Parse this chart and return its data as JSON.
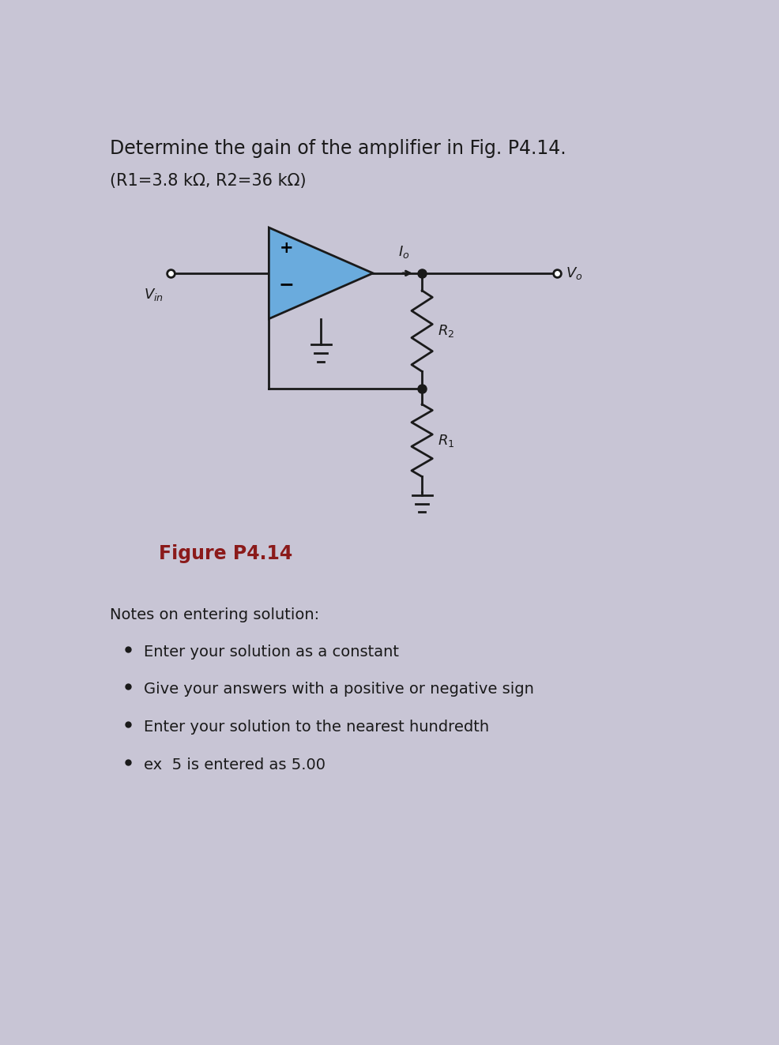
{
  "title_line1": "Determine the gain of the amplifier in Fig. P4.14.",
  "title_line2": "(R1=3.8 kΩ, R2=36 kΩ)",
  "figure_label": "Figure P4.14",
  "figure_label_color": "#8B1A1A",
  "notes_title": "Notes on entering solution:",
  "bullet_points": [
    "Enter your solution as a constant",
    "Give your answers with a positive or negative sign",
    "Enter your solution to the nearest hundredth",
    "ex  5 is entered as 5.00"
  ],
  "background_color": "#c8c5d5",
  "text_color": "#1a1a1a",
  "circuit_color": "#1a1a1a",
  "opamp_fill_color": "#6aabdd",
  "opamp_edge_color": "#1a1a1a",
  "title_fontsize": 17,
  "subtitle_fontsize": 15,
  "notes_fontsize": 14,
  "bullet_fontsize": 14,
  "figure_label_fontsize": 17
}
